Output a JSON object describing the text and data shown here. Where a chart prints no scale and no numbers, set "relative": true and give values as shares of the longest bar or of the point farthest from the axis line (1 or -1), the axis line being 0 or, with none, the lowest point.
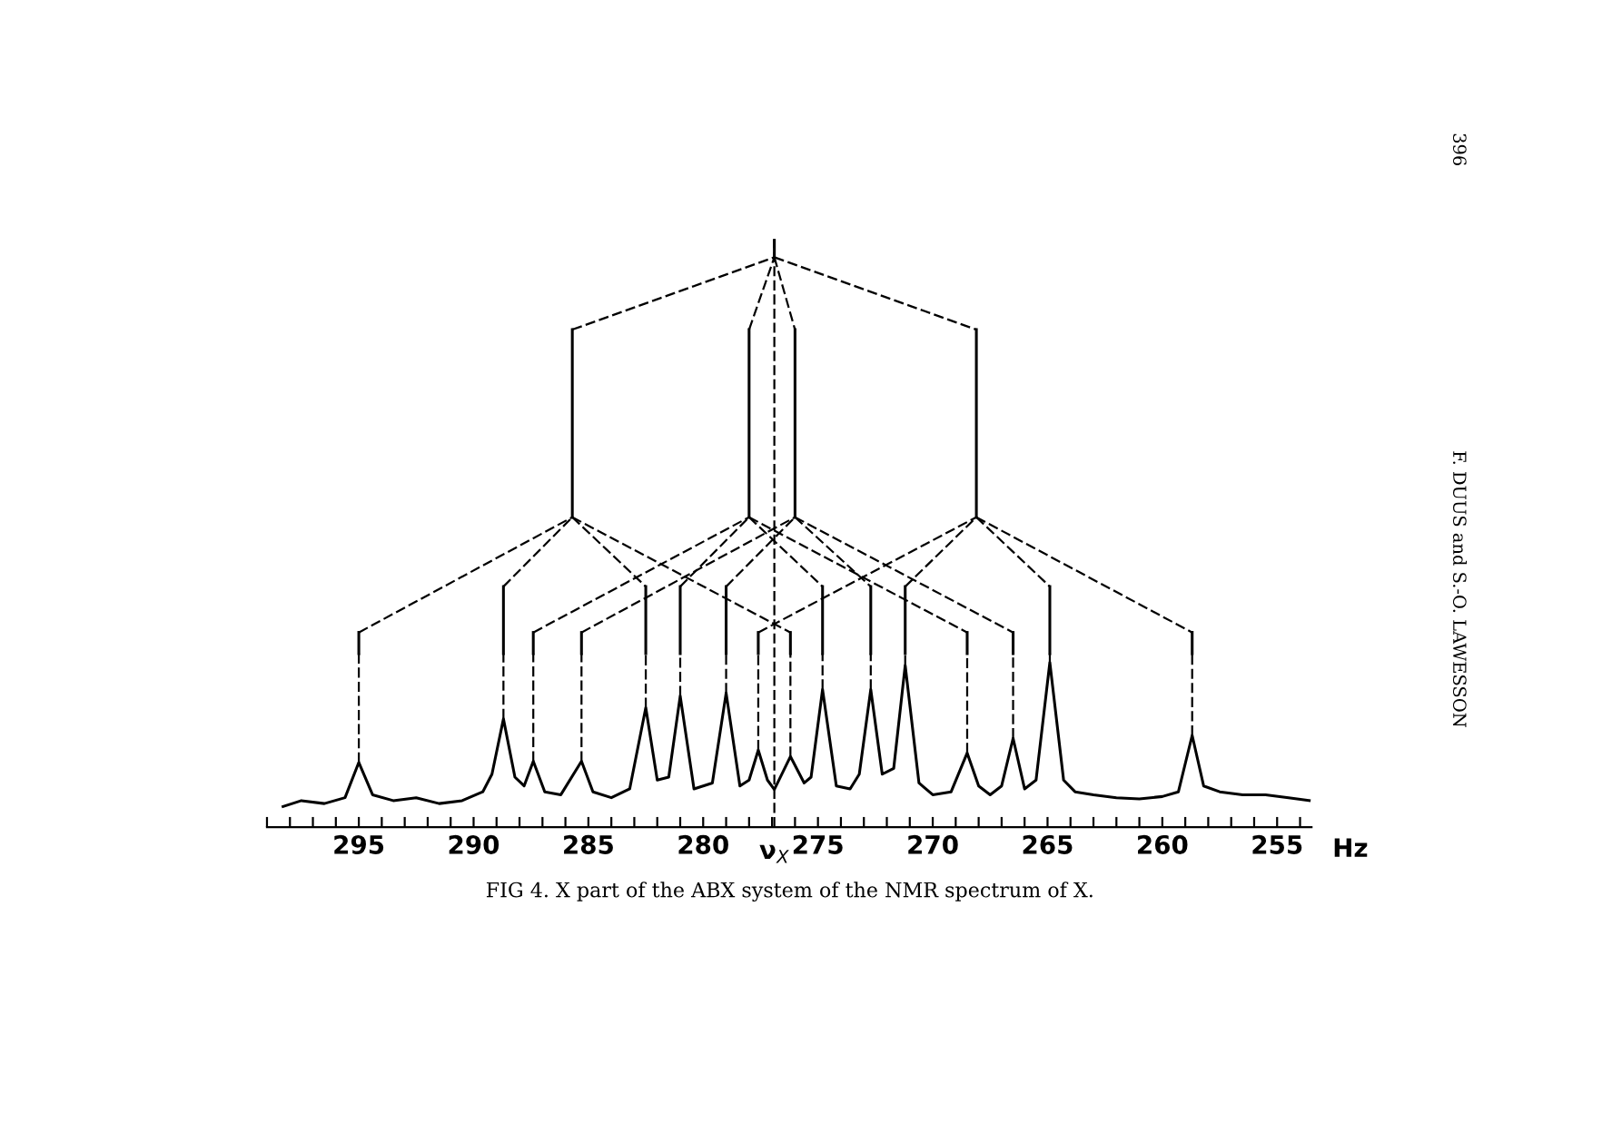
{
  "chart_data": {
    "type": "line",
    "relative": true,
    "xlabel": "Hz",
    "xlim": [
      299,
      253.5
    ],
    "xticks": [
      {
        "value": 299,
        "label": null
      },
      {
        "value": 298,
        "label": null
      },
      {
        "value": 297,
        "label": null
      },
      {
        "value": 296,
        "label": null
      },
      295,
      {
        "value": 294,
        "label": null
      },
      {
        "value": 293,
        "label": null
      },
      {
        "value": 292,
        "label": null
      },
      {
        "value": 291,
        "label": null
      },
      290,
      {
        "value": 289,
        "label": null
      },
      {
        "value": 288,
        "label": null
      },
      {
        "value": 287,
        "label": null
      },
      {
        "value": 286,
        "label": null
      },
      285,
      {
        "value": 284,
        "label": null
      },
      {
        "value": 283,
        "label": null
      },
      {
        "value": 282,
        "label": null
      },
      {
        "value": 281,
        "label": null
      },
      280,
      {
        "value": 279,
        "label": null
      },
      {
        "value": 278,
        "label": null
      },
      {
        "value": 277,
        "label": null
      },
      {
        "value": 276,
        "label": null
      },
      275,
      {
        "value": 274,
        "label": null
      },
      {
        "value": 273,
        "label": null
      },
      {
        "value": 272,
        "label": null
      },
      {
        "value": 271,
        "label": null
      },
      270,
      {
        "value": 269,
        "label": null
      },
      {
        "value": 268,
        "label": null
      },
      {
        "value": 267,
        "label": null
      },
      {
        "value": 266,
        "label": null
      },
      265,
      {
        "value": 264,
        "label": null
      },
      {
        "value": 263,
        "label": null
      },
      {
        "value": 262,
        "label": null
      },
      {
        "value": 261,
        "label": null
      },
      260,
      {
        "value": 259,
        "label": null
      },
      {
        "value": 258,
        "label": null
      },
      {
        "value": 257,
        "label": null
      },
      {
        "value": 256,
        "label": null
      },
      255,
      {
        "value": 254,
        "label": null
      }
    ],
    "grid": false,
    "legend": false,
    "marker": "none",
    "ref_lines": [
      {
        "axis": "x",
        "value": 276.9,
        "label": "ν$_{X}$",
        "line_style": "dashed",
        "color": "#000000"
      }
    ],
    "annotations": [
      "FIG 4. X part of the ABX system of the NMR spectrum of X.",
      "396",
      "F. DUUS and S.-O. LAWESSON"
    ],
    "series": [
      {
        "color": "#000000",
        "line_style": "solid",
        "x": [
          298.3,
          297.5,
          296.5,
          295.6,
          295.0,
          294.4,
          293.5,
          292.5,
          291.5,
          290.5,
          289.6,
          289.2,
          288.7,
          288.2,
          287.8,
          287.4,
          286.9,
          286.2,
          285.3,
          284.8,
          284.0,
          283.2,
          282.5,
          282.0,
          281.5,
          281.0,
          280.4,
          279.6,
          279.0,
          278.4,
          278.0,
          277.6,
          277.2,
          276.9,
          276.2,
          275.6,
          275.3,
          274.8,
          274.2,
          273.6,
          273.2,
          272.7,
          272.2,
          271.7,
          271.2,
          270.6,
          270.0,
          269.2,
          268.5,
          268.0,
          267.5,
          267.0,
          266.5,
          266.0,
          265.5,
          264.9,
          264.3,
          263.8,
          263.0,
          262.0,
          261.0,
          260.0,
          259.3,
          258.7,
          258.2,
          257.5,
          256.5,
          255.5,
          254.5,
          253.6
        ],
        "values": [
          0.035,
          0.045,
          0.04,
          0.05,
          0.11,
          0.055,
          0.045,
          0.05,
          0.04,
          0.045,
          0.06,
          0.09,
          0.184,
          0.085,
          0.07,
          0.112,
          0.06,
          0.055,
          0.112,
          0.06,
          0.05,
          0.065,
          0.203,
          0.08,
          0.085,
          0.223,
          0.065,
          0.075,
          0.228,
          0.07,
          0.08,
          0.131,
          0.08,
          0.064,
          0.12,
          0.075,
          0.085,
          0.234,
          0.07,
          0.065,
          0.09,
          0.234,
          0.09,
          0.1,
          0.275,
          0.075,
          0.055,
          0.06,
          0.126,
          0.07,
          0.055,
          0.07,
          0.151,
          0.065,
          0.08,
          0.28,
          0.08,
          0.06,
          0.055,
          0.05,
          0.048,
          0.052,
          0.06,
          0.156,
          0.07,
          0.06,
          0.055,
          0.055,
          0.05,
          0.045
        ]
      },
      {
        "color": "#000000",
        "line_style": "solid",
        "x": [
          276.9,
          276.9
        ],
        "values": [
          0.969,
          1.0
        ]
      },
      {
        "color": "#000000",
        "line_style": "solid",
        "x": [
          285.7,
          285.7
        ],
        "values": [
          0.527,
          0.846
        ]
      },
      {
        "color": "#000000",
        "line_style": "solid",
        "x": [
          278.0,
          278.0
        ],
        "values": [
          0.527,
          0.846
        ]
      },
      {
        "color": "#000000",
        "line_style": "solid",
        "x": [
          276.0,
          276.0
        ],
        "values": [
          0.527,
          0.846
        ]
      },
      {
        "color": "#000000",
        "line_style": "solid",
        "x": [
          268.1,
          268.1
        ],
        "values": [
          0.527,
          0.846
        ]
      },
      {
        "color": "#000000",
        "line_style": "solid",
        "x": [
          295.0,
          295.0
        ],
        "values": [
          0.295,
          0.331
        ]
      },
      {
        "color": "#000000",
        "line_style": "solid",
        "x": [
          288.7,
          288.7
        ],
        "values": [
          0.295,
          0.409
        ]
      },
      {
        "color": "#000000",
        "line_style": "solid",
        "x": [
          287.4,
          287.4
        ],
        "values": [
          0.295,
          0.331
        ]
      },
      {
        "color": "#000000",
        "line_style": "solid",
        "x": [
          285.3,
          285.3
        ],
        "values": [
          0.295,
          0.331
        ]
      },
      {
        "color": "#000000",
        "line_style": "solid",
        "x": [
          282.5,
          282.5
        ],
        "values": [
          0.295,
          0.409
        ]
      },
      {
        "color": "#000000",
        "line_style": "solid",
        "x": [
          281.0,
          281.0
        ],
        "values": [
          0.295,
          0.409
        ]
      },
      {
        "color": "#000000",
        "line_style": "solid",
        "x": [
          279.0,
          279.0
        ],
        "values": [
          0.295,
          0.409
        ]
      },
      {
        "color": "#000000",
        "line_style": "solid",
        "x": [
          277.6,
          277.6
        ],
        "values": [
          0.295,
          0.331
        ]
      },
      {
        "color": "#000000",
        "line_style": "solid",
        "x": [
          276.2,
          276.2
        ],
        "values": [
          0.295,
          0.331
        ]
      },
      {
        "color": "#000000",
        "line_style": "solid",
        "x": [
          274.8,
          274.8
        ],
        "values": [
          0.295,
          0.409
        ]
      },
      {
        "color": "#000000",
        "line_style": "solid",
        "x": [
          272.7,
          272.7
        ],
        "values": [
          0.295,
          0.409
        ]
      },
      {
        "color": "#000000",
        "line_style": "solid",
        "x": [
          271.2,
          271.2
        ],
        "values": [
          0.295,
          0.409
        ]
      },
      {
        "color": "#000000",
        "line_style": "solid",
        "x": [
          268.5,
          268.5
        ],
        "values": [
          0.295,
          0.331
        ]
      },
      {
        "color": "#000000",
        "line_style": "solid",
        "x": [
          266.5,
          266.5
        ],
        "values": [
          0.295,
          0.331
        ]
      },
      {
        "color": "#000000",
        "line_style": "solid",
        "x": [
          264.9,
          264.9
        ],
        "values": [
          0.295,
          0.409
        ]
      },
      {
        "color": "#000000",
        "line_style": "solid",
        "x": [
          258.7,
          258.7
        ],
        "values": [
          0.295,
          0.331
        ]
      },
      {
        "color": "#000000",
        "line_style": "dashed",
        "x": [
          285.7,
          276.9
        ],
        "values": [
          0.846,
          0.969
        ]
      },
      {
        "color": "#000000",
        "line_style": "dashed",
        "x": [
          278.0,
          276.9
        ],
        "values": [
          0.846,
          0.969
        ]
      },
      {
        "color": "#000000",
        "line_style": "dashed",
        "x": [
          276.9,
          276.0
        ],
        "values": [
          0.969,
          0.846
        ]
      },
      {
        "color": "#000000",
        "line_style": "dashed",
        "x": [
          276.9,
          268.1
        ],
        "values": [
          0.969,
          0.846
        ]
      },
      {
        "color": "#000000",
        "line_style": "dashed",
        "x": [
          295.0,
          285.7
        ],
        "values": [
          0.331,
          0.527
        ]
      },
      {
        "color": "#000000",
        "line_style": "dashed",
        "x": [
          288.7,
          285.7
        ],
        "values": [
          0.409,
          0.527
        ]
      },
      {
        "color": "#000000",
        "line_style": "dashed",
        "x": [
          285.7,
          282.5
        ],
        "values": [
          0.527,
          0.409
        ]
      },
      {
        "color": "#000000",
        "line_style": "dashed",
        "x": [
          285.7,
          276.2
        ],
        "values": [
          0.527,
          0.331
        ]
      },
      {
        "color": "#000000",
        "line_style": "dashed",
        "x": [
          287.4,
          278.0
        ],
        "values": [
          0.331,
          0.527
        ]
      },
      {
        "color": "#000000",
        "line_style": "dashed",
        "x": [
          281.0,
          278.0
        ],
        "values": [
          0.409,
          0.527
        ]
      },
      {
        "color": "#000000",
        "line_style": "dashed",
        "x": [
          278.0,
          274.8
        ],
        "values": [
          0.527,
          0.409
        ]
      },
      {
        "color": "#000000",
        "line_style": "dashed",
        "x": [
          278.0,
          268.5
        ],
        "values": [
          0.527,
          0.331
        ]
      },
      {
        "color": "#000000",
        "line_style": "dashed",
        "x": [
          285.3,
          276.0
        ],
        "values": [
          0.331,
          0.527
        ]
      },
      {
        "color": "#000000",
        "line_style": "dashed",
        "x": [
          279.0,
          276.0
        ],
        "values": [
          0.409,
          0.527
        ]
      },
      {
        "color": "#000000",
        "line_style": "dashed",
        "x": [
          276.0,
          272.7
        ],
        "values": [
          0.527,
          0.409
        ]
      },
      {
        "color": "#000000",
        "line_style": "dashed",
        "x": [
          276.0,
          266.5
        ],
        "values": [
          0.527,
          0.331
        ]
      },
      {
        "color": "#000000",
        "line_style": "dashed",
        "x": [
          277.6,
          268.1
        ],
        "values": [
          0.331,
          0.527
        ]
      },
      {
        "color": "#000000",
        "line_style": "dashed",
        "x": [
          271.2,
          268.1
        ],
        "values": [
          0.409,
          0.527
        ]
      },
      {
        "color": "#000000",
        "line_style": "dashed",
        "x": [
          268.1,
          264.9
        ],
        "values": [
          0.527,
          0.409
        ]
      },
      {
        "color": "#000000",
        "line_style": "dashed",
        "x": [
          268.1,
          258.7
        ],
        "values": [
          0.527,
          0.331
        ]
      },
      {
        "color": "#000000",
        "line_style": "dashed",
        "x": [
          295.0,
          295.0
        ],
        "values": [
          0.11,
          0.295
        ]
      },
      {
        "color": "#000000",
        "line_style": "dashed",
        "x": [
          288.7,
          288.7
        ],
        "values": [
          0.184,
          0.295
        ]
      },
      {
        "color": "#000000",
        "line_style": "dashed",
        "x": [
          287.4,
          287.4
        ],
        "values": [
          0.112,
          0.295
        ]
      },
      {
        "color": "#000000",
        "line_style": "dashed",
        "x": [
          285.3,
          285.3
        ],
        "values": [
          0.112,
          0.295
        ]
      },
      {
        "color": "#000000",
        "line_style": "dashed",
        "x": [
          282.5,
          282.5
        ],
        "values": [
          0.203,
          0.295
        ]
      },
      {
        "color": "#000000",
        "line_style": "dashed",
        "x": [
          281.0,
          281.0
        ],
        "values": [
          0.223,
          0.295
        ]
      },
      {
        "color": "#000000",
        "line_style": "dashed",
        "x": [
          279.0,
          279.0
        ],
        "values": [
          0.228,
          0.295
        ]
      },
      {
        "color": "#000000",
        "line_style": "dashed",
        "x": [
          277.6,
          277.6
        ],
        "values": [
          0.131,
          0.295
        ]
      },
      {
        "color": "#000000",
        "line_style": "dashed",
        "x": [
          276.2,
          276.2
        ],
        "values": [
          0.12,
          0.295
        ]
      },
      {
        "color": "#000000",
        "line_style": "dashed",
        "x": [
          274.8,
          274.8
        ],
        "values": [
          0.234,
          0.295
        ]
      },
      {
        "color": "#000000",
        "line_style": "dashed",
        "x": [
          272.7,
          272.7
        ],
        "values": [
          0.234,
          0.295
        ]
      },
      {
        "color": "#000000",
        "line_style": "dashed",
        "x": [
          271.2,
          271.2
        ],
        "values": [
          0.275,
          0.295
        ]
      },
      {
        "color": "#000000",
        "line_style": "dashed",
        "x": [
          268.5,
          268.5
        ],
        "values": [
          0.126,
          0.295
        ]
      },
      {
        "color": "#000000",
        "line_style": "dashed",
        "x": [
          266.5,
          266.5
        ],
        "values": [
          0.151,
          0.295
        ]
      },
      {
        "color": "#000000",
        "line_style": "dashed",
        "x": [
          264.9,
          264.9
        ],
        "values": [
          0.28,
          0.295
        ]
      },
      {
        "color": "#000000",
        "line_style": "dashed",
        "x": [
          258.7,
          258.7
        ],
        "values": [
          0.156,
          0.295
        ]
      }
    ]
  }
}
